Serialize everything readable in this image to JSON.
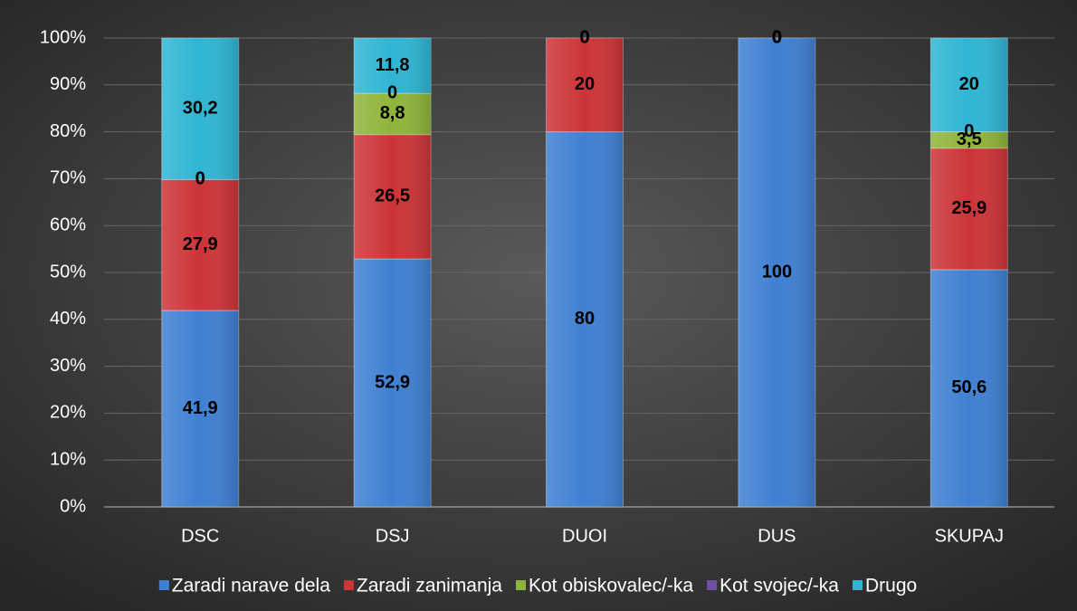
{
  "chart_data": {
    "type": "stacked_bar",
    "categories": [
      "DSC",
      "DSJ",
      "DUOI",
      "DUS",
      "SKUPAJ"
    ],
    "series": [
      {
        "name": "Zaradi narave dela",
        "color": "#3f80d2",
        "values": [
          41.9,
          52.9,
          80,
          100,
          50.6
        ],
        "value_labels": [
          "41,9",
          "52,9",
          "80",
          "100",
          "50,6"
        ]
      },
      {
        "name": "Zaradi zanimanja",
        "color": "#cc3437",
        "values": [
          27.9,
          26.5,
          20,
          0,
          25.9
        ],
        "value_labels": [
          "27,9",
          "26,5",
          "20",
          "0",
          "25,9"
        ]
      },
      {
        "name": "Kot obiskovalec/-ka",
        "color": "#8fb43a",
        "values": [
          0,
          8.8,
          0,
          0,
          3.5
        ],
        "value_labels": [
          "0",
          "8,8",
          "0",
          "0",
          "3,5"
        ]
      },
      {
        "name": "Kot svojec/-ka",
        "color": "#7050a4",
        "values": [
          0,
          0,
          0,
          0,
          0
        ],
        "value_labels": [
          "0",
          "0",
          "0",
          "0",
          "0"
        ]
      },
      {
        "name": "Drugo",
        "color": "#2fb5d4",
        "values": [
          30.2,
          11.8,
          0,
          0,
          20
        ],
        "value_labels": [
          "30,2",
          "11,8",
          "0",
          "0",
          "20"
        ]
      }
    ],
    "ylim": [
      0,
      100
    ],
    "yticks": [
      {
        "value": 0,
        "label": "0%"
      },
      {
        "value": 10,
        "label": "10%"
      },
      {
        "value": 20,
        "label": "20%"
      },
      {
        "value": 30,
        "label": "30%"
      },
      {
        "value": 40,
        "label": "40%"
      },
      {
        "value": 50,
        "label": "50%"
      },
      {
        "value": 60,
        "label": "60%"
      },
      {
        "value": 70,
        "label": "70%"
      },
      {
        "value": 80,
        "label": "80%"
      },
      {
        "value": 90,
        "label": "90%"
      },
      {
        "value": 100,
        "label": "100%"
      }
    ],
    "grid": true,
    "legend": "bottom"
  }
}
